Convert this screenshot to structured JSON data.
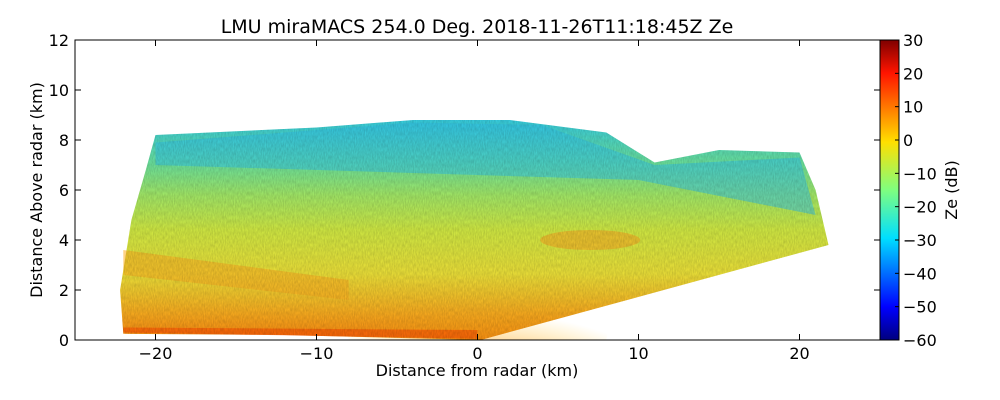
{
  "chart_data": {
    "type": "heatmap",
    "title": "LMU miraMACS 254.0 Deg. 2018-11-26T11:18:45Z  Ze",
    "xlabel": "Distance from radar (km)",
    "ylabel": "Distance Above radar  (km)",
    "xlim": [
      -25,
      25
    ],
    "ylim": [
      0,
      12
    ],
    "xticks": [
      -20,
      -10,
      0,
      10,
      20
    ],
    "xtick_labels": [
      "−20",
      "−10",
      "0",
      "10",
      "20"
    ],
    "yticks": [
      0,
      2,
      4,
      6,
      8,
      10,
      12
    ],
    "ytick_labels": [
      "0",
      "2",
      "4",
      "6",
      "8",
      "10",
      "12"
    ],
    "colorbar": {
      "label": "Ze (dB)",
      "range": [
        -60,
        30
      ],
      "colormap": "jet",
      "ticks": [
        30,
        20,
        10,
        0,
        -10,
        -20,
        -30,
        -40,
        -50,
        -60
      ],
      "tick_labels": [
        "30",
        "20",
        "10",
        "0",
        "−10",
        "−20",
        "−30",
        "−40",
        "−50",
        "−60"
      ]
    },
    "scan": {
      "description": "RHI scan, reflectivity field",
      "echo_top_km_left": 8.2,
      "echo_top_km_center": 8.8,
      "echo_top_km_right": 7.5,
      "left_edge_km": -22,
      "right_edge_km": 21.8,
      "right_edge_bottom_height_km": 3.8,
      "dominant_values_dB": {
        "near_surface": 5,
        "mid_levels": -5,
        "upper_levels": -20
      }
    }
  }
}
